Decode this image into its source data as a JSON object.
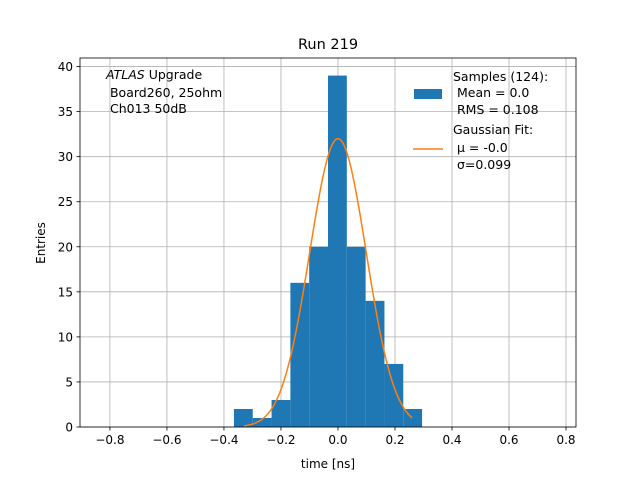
{
  "chart_data": {
    "type": "bar",
    "title": "Run 219",
    "xlabel": "time [ns]",
    "ylabel": "Entries",
    "xlim": [
      -0.905,
      0.835
    ],
    "ylim": [
      0,
      40.95
    ],
    "grid": true,
    "xticks": [
      -0.8,
      -0.6,
      -0.4,
      -0.2,
      0.0,
      0.2,
      0.4,
      0.6,
      0.8
    ],
    "xtick_labels": [
      "−0.8",
      "−0.6",
      "−0.4",
      "−0.2",
      "0.0",
      "0.2",
      "0.4",
      "0.6",
      "0.8"
    ],
    "yticks": [
      0,
      5,
      10,
      15,
      20,
      25,
      30,
      35,
      40
    ],
    "ytick_labels": [
      "0",
      "5",
      "10",
      "15",
      "20",
      "25",
      "30",
      "35",
      "40"
    ],
    "histogram": {
      "name": "Samples",
      "bin_start": -0.365,
      "bin_width": 0.066,
      "counts": [
        2,
        1,
        3,
        16,
        20,
        39,
        20,
        14,
        7,
        2
      ],
      "color": "#1f77b4"
    },
    "fit": {
      "name": "Gaussian Fit",
      "type": "line",
      "mu": 0.0,
      "sigma": 0.099,
      "amplitude": 32,
      "x_range": [
        -0.33,
        0.26
      ],
      "color": "#ff7f0e"
    },
    "annotation": {
      "italic": "ATLAS",
      "line1_rest": " Upgrade",
      "line2": " Board260, 25ohm",
      "line3": " Ch013 50dB"
    },
    "legend": {
      "placement": "top-right",
      "samples": [
        "Samples (124):",
        " Mean = 0.0",
        " RMS = 0.108"
      ],
      "fit": [
        "Gaussian Fit:",
        " μ = -0.0",
        " σ=0.099"
      ]
    }
  }
}
